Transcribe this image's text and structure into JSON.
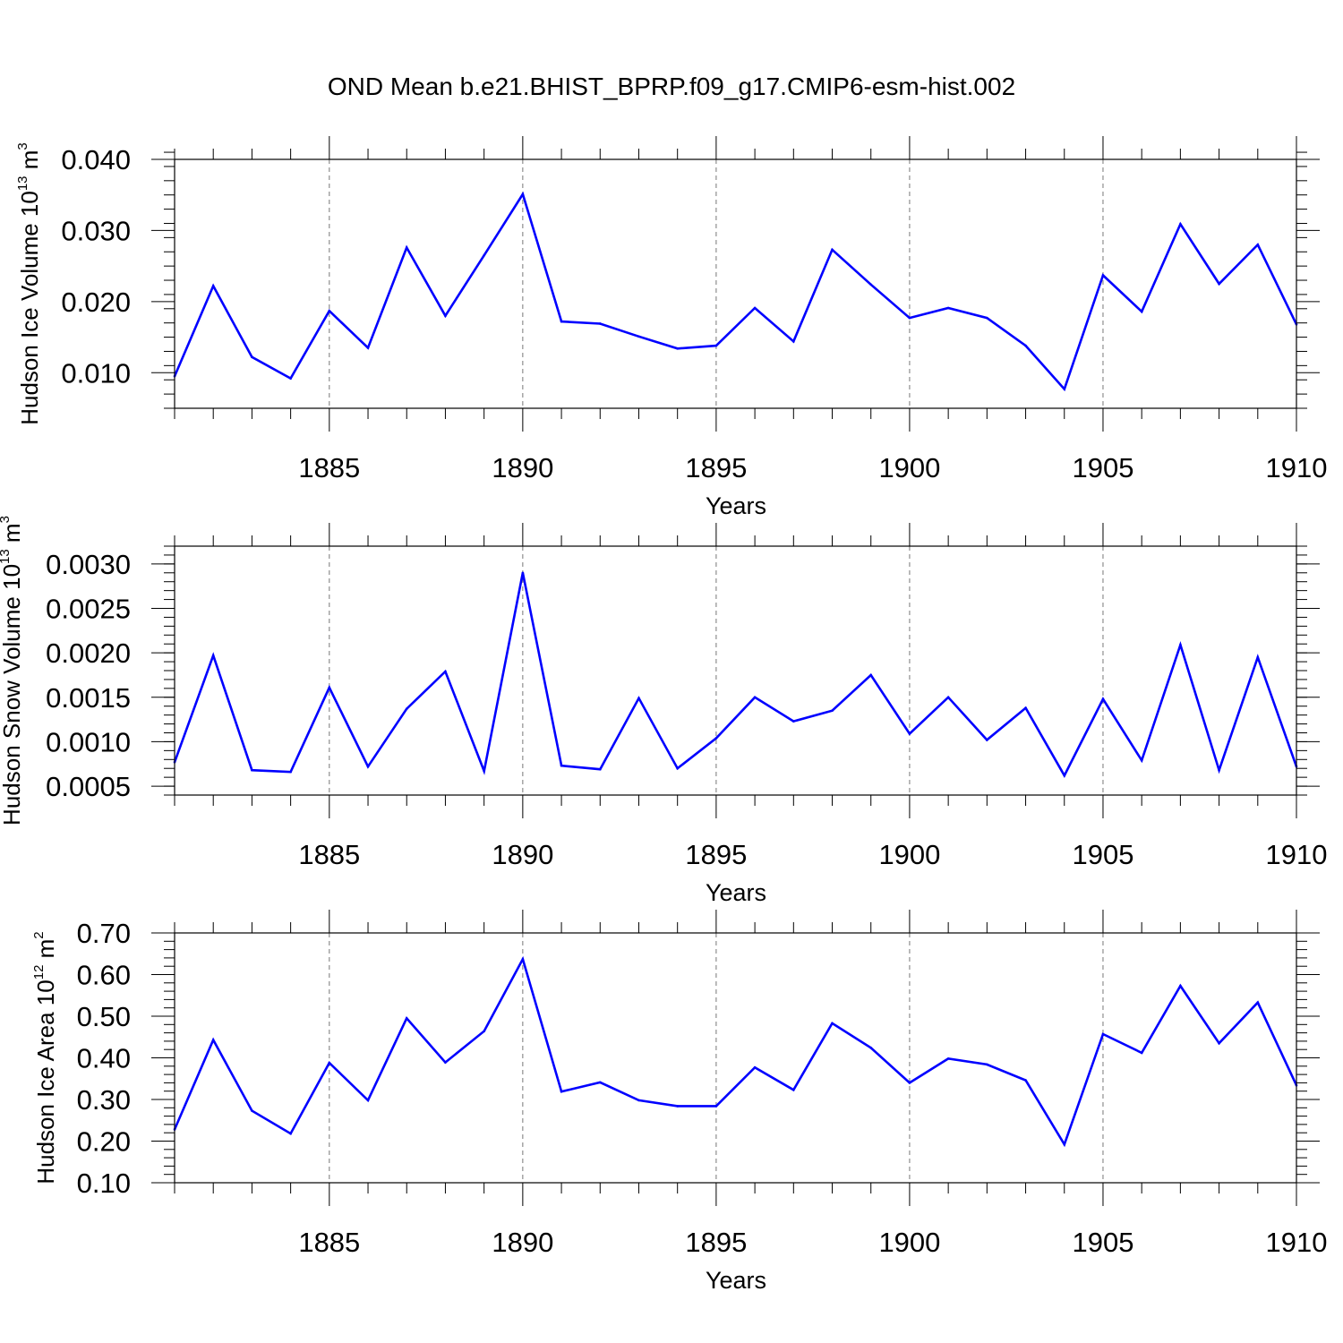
{
  "title": "OND Mean b.e21.BHIST_BPRP.f09_g17.CMIP6-esm-hist.002",
  "chart_data": [
    {
      "type": "line",
      "title": "",
      "xlabel": "Years",
      "ylabel_parts": [
        "Hudson Ice Volume 10",
        "13",
        " m",
        "3"
      ],
      "xlim": [
        1881,
        1910
      ],
      "ylim": [
        0.005,
        0.04
      ],
      "xticks": [
        1885,
        1890,
        1895,
        1900,
        1905,
        1910
      ],
      "xtick_labels": [
        "1885",
        "1890",
        "1895",
        "1900",
        "1905",
        "1910"
      ],
      "yticks": [
        0.01,
        0.02,
        0.03,
        0.04
      ],
      "ytick_labels": [
        "0.010",
        "0.020",
        "0.030",
        "0.040"
      ],
      "grid": "vertical dashed at major x ticks",
      "color": "#0000ff",
      "x": [
        1881,
        1882,
        1883,
        1884,
        1885,
        1886,
        1887,
        1888,
        1889,
        1890,
        1891,
        1892,
        1893,
        1894,
        1895,
        1896,
        1897,
        1898,
        1899,
        1900,
        1901,
        1902,
        1903,
        1904,
        1905,
        1906,
        1907,
        1908,
        1909,
        1910
      ],
      "values": [
        0.0095,
        0.0222,
        0.0122,
        0.0092,
        0.0187,
        0.0135,
        0.0276,
        0.018,
        0.0265,
        0.0351,
        0.0172,
        0.0169,
        0.0151,
        0.0134,
        0.0138,
        0.0191,
        0.0144,
        0.0273,
        0.0224,
        0.0177,
        0.0191,
        0.0177,
        0.0138,
        0.0077,
        0.0237,
        0.0186,
        0.0309,
        0.0225,
        0.028,
        0.0168
      ]
    },
    {
      "type": "line",
      "title": "",
      "xlabel": "Years",
      "ylabel_parts": [
        "Hudson Snow Volume 10",
        "13",
        " m",
        "3"
      ],
      "xlim": [
        1881,
        1910
      ],
      "ylim": [
        0.0004,
        0.0032
      ],
      "xticks": [
        1885,
        1890,
        1895,
        1900,
        1905,
        1910
      ],
      "xtick_labels": [
        "1885",
        "1890",
        "1895",
        "1900",
        "1905",
        "1910"
      ],
      "yticks": [
        0.0005,
        0.001,
        0.0015,
        0.002,
        0.0025,
        0.003
      ],
      "ytick_labels": [
        "0.0005",
        "0.0010",
        "0.0015",
        "0.0020",
        "0.0025",
        "0.0030"
      ],
      "grid": "vertical dashed at major x ticks",
      "color": "#0000ff",
      "x": [
        1881,
        1882,
        1883,
        1884,
        1885,
        1886,
        1887,
        1888,
        1889,
        1890,
        1891,
        1892,
        1893,
        1894,
        1895,
        1896,
        1897,
        1898,
        1899,
        1900,
        1901,
        1902,
        1903,
        1904,
        1905,
        1906,
        1907,
        1908,
        1909,
        1910
      ],
      "values": [
        0.00077,
        0.00197,
        0.00068,
        0.00066,
        0.00161,
        0.00072,
        0.00137,
        0.00179,
        0.00067,
        0.0029,
        0.00073,
        0.00069,
        0.00149,
        0.0007,
        0.00104,
        0.0015,
        0.00123,
        0.00135,
        0.00175,
        0.00109,
        0.0015,
        0.00102,
        0.00138,
        0.00062,
        0.00148,
        0.00079,
        0.00209,
        0.00068,
        0.00195,
        0.00072
      ]
    },
    {
      "type": "line",
      "title": "",
      "xlabel": "Years",
      "ylabel_parts": [
        "Hudson Ice Area 10",
        "12",
        " m",
        "2"
      ],
      "xlim": [
        1881,
        1910
      ],
      "ylim": [
        0.1,
        0.7
      ],
      "xticks": [
        1885,
        1890,
        1895,
        1900,
        1905,
        1910
      ],
      "xtick_labels": [
        "1885",
        "1890",
        "1895",
        "1900",
        "1905",
        "1910"
      ],
      "yticks": [
        0.1,
        0.2,
        0.3,
        0.4,
        0.5,
        0.6,
        0.7
      ],
      "ytick_labels": [
        "0.10",
        "0.20",
        "0.30",
        "0.40",
        "0.50",
        "0.60",
        "0.70"
      ],
      "grid": "vertical dashed at major x ticks",
      "color": "#0000ff",
      "x": [
        1881,
        1882,
        1883,
        1884,
        1885,
        1886,
        1887,
        1888,
        1889,
        1890,
        1891,
        1892,
        1893,
        1894,
        1895,
        1896,
        1897,
        1898,
        1899,
        1900,
        1901,
        1902,
        1903,
        1904,
        1905,
        1906,
        1907,
        1908,
        1909,
        1910
      ],
      "values": [
        0.228,
        0.443,
        0.273,
        0.218,
        0.388,
        0.298,
        0.495,
        0.389,
        0.464,
        0.637,
        0.319,
        0.341,
        0.298,
        0.284,
        0.284,
        0.377,
        0.323,
        0.483,
        0.424,
        0.34,
        0.398,
        0.384,
        0.346,
        0.192,
        0.457,
        0.412,
        0.573,
        0.435,
        0.533,
        0.334
      ]
    }
  ]
}
